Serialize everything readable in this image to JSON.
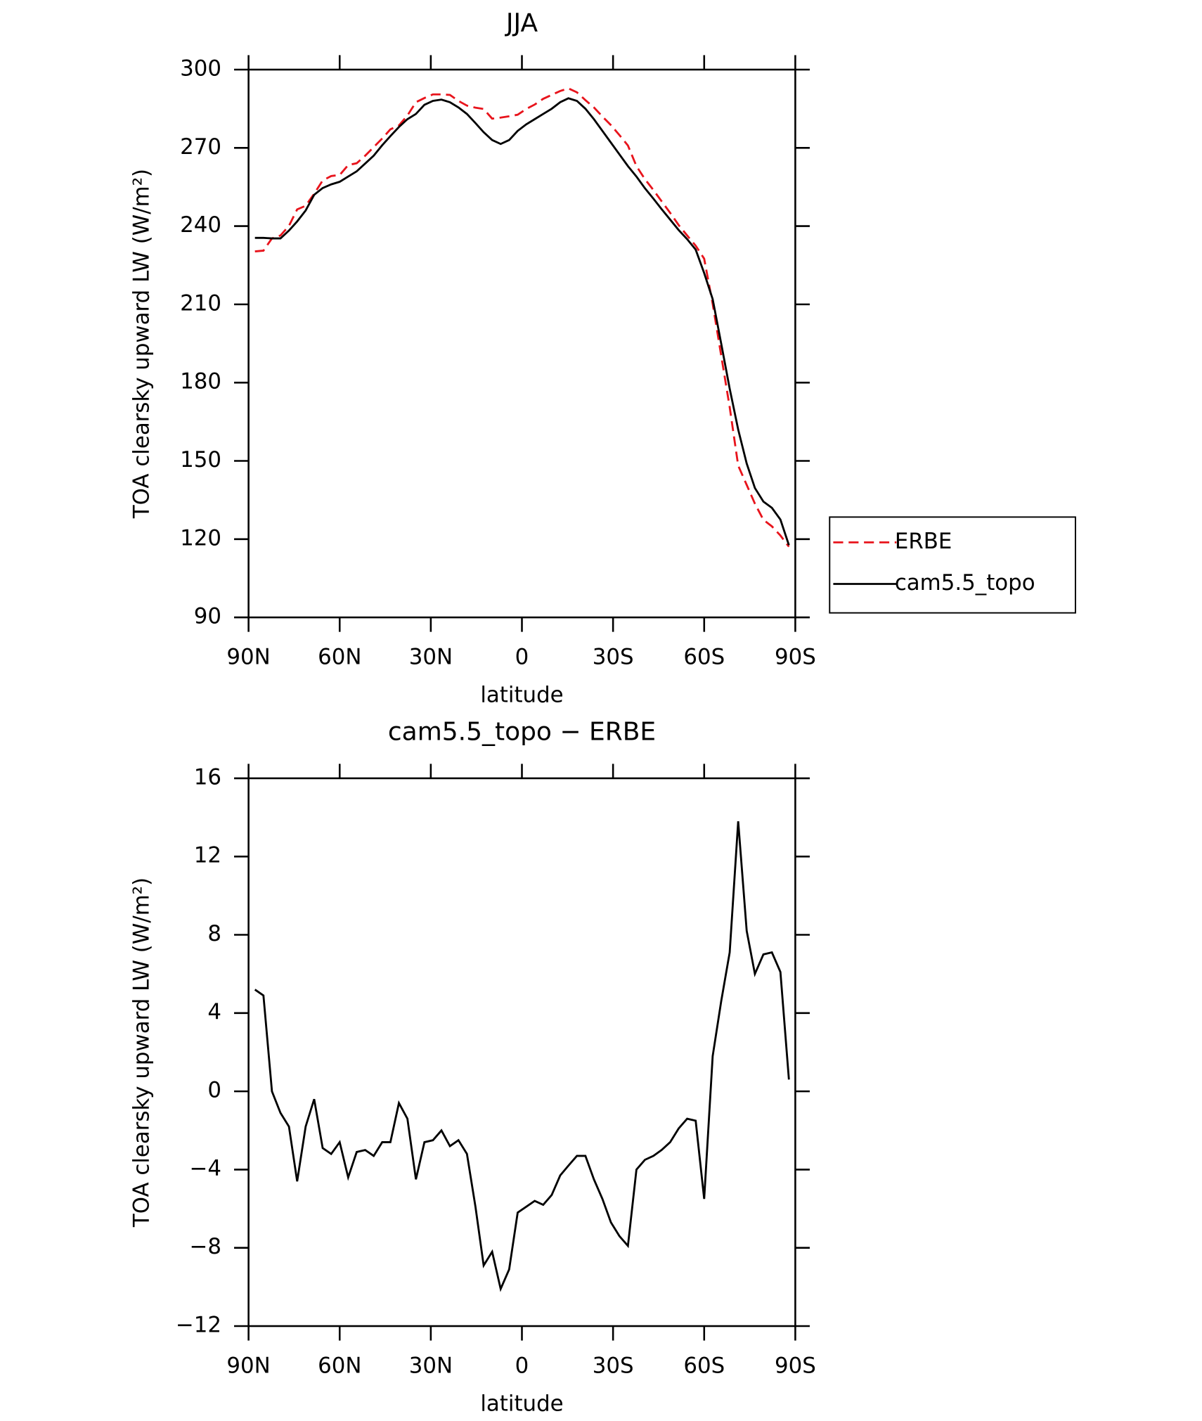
{
  "chart_data": [
    {
      "type": "line",
      "title": "JJA",
      "xlabel": "latitude",
      "ylabel": "TOA clearsky upward LW (W/m²)",
      "x": [
        87.9,
        85.1,
        82.3,
        79.5,
        76.7,
        74.0,
        71.2,
        68.4,
        65.6,
        62.8,
        60.0,
        57.2,
        54.4,
        51.6,
        48.8,
        46.0,
        43.3,
        40.5,
        37.7,
        34.9,
        32.1,
        29.3,
        26.5,
        23.7,
        20.9,
        18.1,
        15.3,
        12.6,
        9.8,
        7.0,
        4.2,
        1.4,
        -1.4,
        -4.2,
        -7.0,
        -9.8,
        -12.6,
        -15.3,
        -18.1,
        -20.9,
        -23.7,
        -26.5,
        -29.3,
        -32.1,
        -34.9,
        -37.7,
        -40.5,
        -43.3,
        -46.0,
        -48.8,
        -51.6,
        -54.4,
        -57.2,
        -60.0,
        -62.8,
        -65.6,
        -68.4,
        -71.2,
        -74.0,
        -76.7,
        -79.5,
        -82.3,
        -85.1,
        -87.9
      ],
      "series": [
        {
          "name": "ERBE",
          "color": "#e8141c",
          "line_style": "dashed",
          "values": [
            230.3,
            230.6,
            235.3,
            236.4,
            240.1,
            246.4,
            247.8,
            252.4,
            257.5,
            259.2,
            259.6,
            263.4,
            264.1,
            267.0,
            270.3,
            273.6,
            277.1,
            278.6,
            282.4,
            287.5,
            289.1,
            290.5,
            290.5,
            290.3,
            288.0,
            286.2,
            285.4,
            284.9,
            281.2,
            281.6,
            282.1,
            282.7,
            284.9,
            286.6,
            288.8,
            290.3,
            291.8,
            292.8,
            291.3,
            288.3,
            285.5,
            282.0,
            278.7,
            274.9,
            270.9,
            263.0,
            258.0,
            253.8,
            249.5,
            245.1,
            240.4,
            236.4,
            232.5,
            227.5,
            210.2,
            190.4,
            170.6,
            148.2,
            140.8,
            133.6,
            127.4,
            124.9,
            121.4,
            117.1
          ]
        },
        {
          "name": "cam5.5_topo",
          "color": "#000000",
          "line_style": "solid",
          "values": [
            235.5,
            235.5,
            235.3,
            235.3,
            238.3,
            241.8,
            246.0,
            252.0,
            254.6,
            256.0,
            257.0,
            259.0,
            261.0,
            264.0,
            267.0,
            271.0,
            274.5,
            278.0,
            281.0,
            283.0,
            286.5,
            288.0,
            288.5,
            287.5,
            285.5,
            283.0,
            279.5,
            276.0,
            273.0,
            271.5,
            273.0,
            276.5,
            279.0,
            281.0,
            283.0,
            285.0,
            287.5,
            289.0,
            288.0,
            285.0,
            281.0,
            276.5,
            272.0,
            267.5,
            263.0,
            259.0,
            254.5,
            250.5,
            246.5,
            242.5,
            238.5,
            235.0,
            231.0,
            222.0,
            212.0,
            195.0,
            177.7,
            162.0,
            149.0,
            139.6,
            134.4,
            132.0,
            127.5,
            117.7
          ]
        }
      ],
      "xlim": [
        90,
        -90
      ],
      "xticks": [
        {
          "value": 90,
          "label": "90N"
        },
        {
          "value": 60,
          "label": "60N"
        },
        {
          "value": 30,
          "label": "30N"
        },
        0,
        {
          "value": -30,
          "label": "30S"
        },
        {
          "value": -60,
          "label": "60S"
        },
        {
          "value": -90,
          "label": "90S"
        }
      ],
      "ylim": [
        90,
        300
      ],
      "yticks": [
        90,
        120,
        150,
        180,
        210,
        240,
        270,
        300
      ],
      "legend": "right"
    },
    {
      "type": "line",
      "title": "cam5.5_topo − ERBE",
      "xlabel": "latitude",
      "ylabel": "TOA clearsky upward LW (W/m²)",
      "x": [
        87.9,
        85.1,
        82.3,
        79.5,
        76.7,
        74.0,
        71.2,
        68.4,
        65.6,
        62.8,
        60.0,
        57.2,
        54.4,
        51.6,
        48.8,
        46.0,
        43.3,
        40.5,
        37.7,
        34.9,
        32.1,
        29.3,
        26.5,
        23.7,
        20.9,
        18.1,
        15.3,
        12.6,
        9.8,
        7.0,
        4.2,
        1.4,
        -1.4,
        -4.2,
        -7.0,
        -9.8,
        -12.6,
        -15.3,
        -18.1,
        -20.9,
        -23.7,
        -26.5,
        -29.3,
        -32.1,
        -34.9,
        -37.7,
        -40.5,
        -43.3,
        -46.0,
        -48.8,
        -51.6,
        -54.4,
        -57.2,
        -60.0,
        -62.8,
        -65.6,
        -68.4,
        -71.2,
        -74.0,
        -76.7,
        -79.5,
        -82.3,
        -85.1,
        -87.9
      ],
      "values": [
        5.2,
        4.9,
        0.0,
        -1.1,
        -1.8,
        -4.6,
        -1.8,
        -0.4,
        -2.9,
        -3.2,
        -2.6,
        -4.4,
        -3.1,
        -3.0,
        -3.3,
        -2.6,
        -2.6,
        -0.6,
        -1.4,
        -4.5,
        -2.6,
        -2.5,
        -2.0,
        -2.8,
        -2.5,
        -3.2,
        -5.9,
        -8.9,
        -8.2,
        -10.1,
        -9.1,
        -6.2,
        -5.9,
        -5.6,
        -5.8,
        -5.3,
        -4.3,
        -3.8,
        -3.3,
        -3.3,
        -4.5,
        -5.5,
        -6.7,
        -7.4,
        -7.9,
        -4.0,
        -3.5,
        -3.3,
        -3.0,
        -2.6,
        -1.9,
        -1.4,
        -1.5,
        -5.5,
        1.8,
        4.6,
        7.1,
        13.8,
        8.2,
        6.0,
        7.0,
        7.1,
        6.1,
        0.6
      ],
      "color": "#000000",
      "xlim": [
        90,
        -90
      ],
      "xticks": [
        {
          "value": 90,
          "label": "90N"
        },
        {
          "value": 60,
          "label": "60N"
        },
        {
          "value": 30,
          "label": "30N"
        },
        0,
        {
          "value": -30,
          "label": "30S"
        },
        {
          "value": -60,
          "label": "60S"
        },
        {
          "value": -90,
          "label": "90S"
        }
      ],
      "ylim": [
        -12,
        16
      ],
      "yticks": [
        {
          "value": -12,
          "label": "−12"
        },
        {
          "value": -8,
          "label": "−8"
        },
        {
          "value": -4,
          "label": "−4"
        },
        0,
        4,
        8,
        12,
        16
      ]
    }
  ]
}
